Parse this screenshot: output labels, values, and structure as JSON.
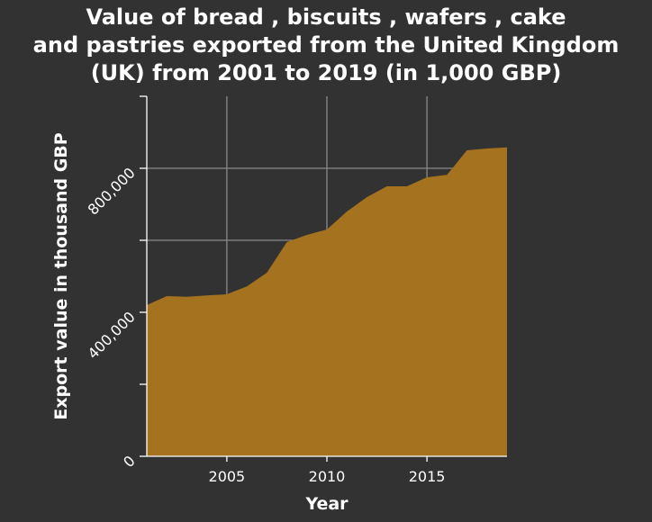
{
  "chart_data": {
    "type": "area",
    "title": "Value of bread , biscuits , wafers , cake\nand pastries exported from the United Kingdom\n(UK) from 2001 to 2019 (in 1,000 GBP)",
    "xlabel": "Year",
    "ylabel": "Export value in thousand GBP",
    "x": [
      2001,
      2002,
      2003,
      2004,
      2005,
      2006,
      2007,
      2008,
      2009,
      2010,
      2011,
      2012,
      2013,
      2014,
      2015,
      2016,
      2017,
      2018,
      2019
    ],
    "values": [
      420000,
      445000,
      443000,
      447000,
      450000,
      472000,
      510000,
      595000,
      615000,
      630000,
      680000,
      720000,
      750000,
      750000,
      775000,
      782000,
      850000,
      855000,
      858000
    ],
    "xlim": [
      2001,
      2019
    ],
    "ylim": [
      0,
      1000000
    ],
    "x_ticks": [
      2005,
      2010,
      2015
    ],
    "x_tick_labels": [
      "2005",
      "2010",
      "2015"
    ],
    "y_ticks": [
      0,
      400000,
      800000
    ],
    "y_tick_labels": [
      "0",
      "400,000",
      "800,000"
    ],
    "grid": true,
    "fill_color": "#a5721f",
    "background_color": "#323232",
    "grid_color": "#8a8a8a"
  }
}
